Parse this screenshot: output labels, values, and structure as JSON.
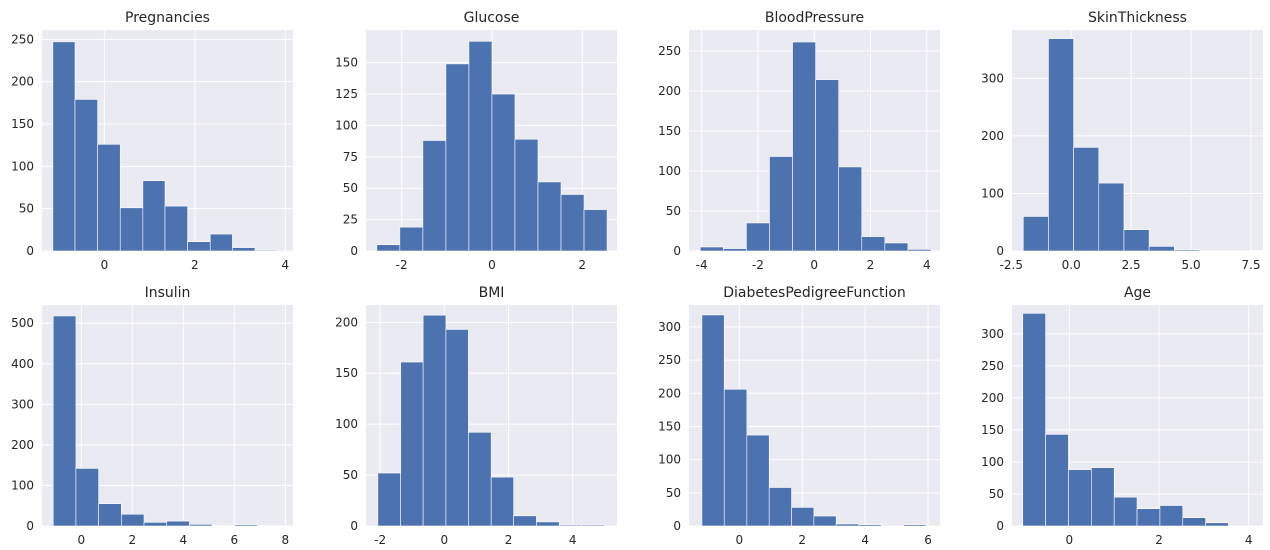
{
  "chart_data": [
    {
      "type": "bar",
      "title": "Pregnancies",
      "xlim": [
        -1.38,
        4.17
      ],
      "ylim": [
        0,
        261
      ],
      "xticks": [
        0,
        2,
        4
      ],
      "yticks": [
        0,
        50,
        100,
        150,
        200,
        250
      ],
      "bins": [
        [
          -1.14,
          -0.65,
          247
        ],
        [
          -0.65,
          -0.15,
          179
        ],
        [
          -0.15,
          0.35,
          126
        ],
        [
          0.35,
          0.85,
          51
        ],
        [
          0.85,
          1.34,
          83
        ],
        [
          1.34,
          1.84,
          53
        ],
        [
          1.84,
          2.34,
          11
        ],
        [
          2.34,
          2.83,
          20
        ],
        [
          2.83,
          3.33,
          4
        ],
        [
          3.33,
          3.83,
          1
        ]
      ]
    },
    {
      "type": "bar",
      "title": "Glucose",
      "xlim": [
        -2.79,
        2.77
      ],
      "ylim": [
        0,
        176
      ],
      "xticks": [
        -2,
        0,
        2
      ],
      "yticks": [
        0,
        25,
        50,
        75,
        100,
        125,
        150
      ],
      "bins": [
        [
          -2.55,
          -2.04,
          5
        ],
        [
          -2.04,
          -1.53,
          19
        ],
        [
          -1.53,
          -1.02,
          88
        ],
        [
          -1.02,
          -0.51,
          149
        ],
        [
          -0.51,
          0.0,
          167
        ],
        [
          0.0,
          0.51,
          125
        ],
        [
          0.51,
          1.02,
          89
        ],
        [
          1.02,
          1.53,
          55
        ],
        [
          1.53,
          2.04,
          45
        ],
        [
          2.04,
          2.55,
          33
        ]
      ]
    },
    {
      "type": "bar",
      "title": "BloodPressure",
      "xlim": [
        -4.45,
        4.47
      ],
      "ylim": [
        0,
        276
      ],
      "xticks": [
        -4,
        -2,
        0,
        2,
        4
      ],
      "yticks": [
        0,
        50,
        100,
        150,
        200,
        250
      ],
      "bins": [
        [
          -4.05,
          -3.23,
          5
        ],
        [
          -3.23,
          -2.41,
          3
        ],
        [
          -2.41,
          -1.59,
          35
        ],
        [
          -1.59,
          -0.77,
          118
        ],
        [
          -0.77,
          0.05,
          261
        ],
        [
          0.05,
          0.87,
          214
        ],
        [
          0.87,
          1.69,
          105
        ],
        [
          1.69,
          2.51,
          18
        ],
        [
          2.51,
          3.33,
          10
        ],
        [
          3.33,
          4.15,
          2
        ]
      ]
    },
    {
      "type": "bar",
      "title": "SkinThickness",
      "xlim": [
        -2.47,
        8.0
      ],
      "ylim": [
        0,
        384
      ],
      "xticks": [
        -2.5,
        0.0,
        2.5,
        5.0,
        7.5
      ],
      "yticks": [
        0,
        100,
        200,
        300
      ],
      "bins": [
        [
          -2.0,
          -0.95,
          60
        ],
        [
          -0.95,
          0.1,
          369
        ],
        [
          0.1,
          1.15,
          180
        ],
        [
          1.15,
          2.2,
          118
        ],
        [
          2.2,
          3.25,
          37
        ],
        [
          3.25,
          4.3,
          8
        ],
        [
          4.3,
          5.35,
          2
        ],
        [
          5.35,
          6.4,
          0
        ],
        [
          6.4,
          7.45,
          0
        ],
        [
          7.45,
          8.5,
          1
        ]
      ]
    },
    {
      "type": "bar",
      "title": "Insulin",
      "xlim": [
        -1.54,
        8.3
      ],
      "ylim": [
        0,
        545
      ],
      "xticks": [
        0,
        2,
        4,
        6,
        8
      ],
      "yticks": [
        0,
        100,
        200,
        300,
        400,
        500
      ],
      "bins": [
        [
          -1.1,
          -0.21,
          518
        ],
        [
          -0.21,
          0.68,
          142
        ],
        [
          0.68,
          1.57,
          55
        ],
        [
          1.57,
          2.46,
          29
        ],
        [
          2.46,
          3.35,
          9
        ],
        [
          3.35,
          4.24,
          12
        ],
        [
          4.24,
          5.13,
          4
        ],
        [
          5.13,
          6.02,
          1
        ],
        [
          6.02,
          6.91,
          3
        ],
        [
          6.91,
          7.8,
          1
        ]
      ]
    },
    {
      "type": "bar",
      "title": "BMI",
      "xlim": [
        -2.44,
        5.38
      ],
      "ylim": [
        0,
        217
      ],
      "xticks": [
        -2,
        0,
        2,
        4
      ],
      "yticks": [
        0,
        50,
        100,
        150,
        200
      ],
      "bins": [
        [
          -2.07,
          -1.36,
          52
        ],
        [
          -1.36,
          -0.66,
          161
        ],
        [
          -0.66,
          0.05,
          207
        ],
        [
          0.05,
          0.75,
          193
        ],
        [
          0.75,
          1.46,
          92
        ],
        [
          1.46,
          2.16,
          48
        ],
        [
          2.16,
          2.87,
          10
        ],
        [
          2.87,
          3.58,
          4
        ],
        [
          3.58,
          4.28,
          1
        ],
        [
          4.28,
          4.99,
          1
        ]
      ]
    },
    {
      "type": "bar",
      "title": "DiabetesPedigreeFunction",
      "xlim": [
        -1.6,
        6.38
      ],
      "ylim": [
        0,
        333
      ],
      "xticks": [
        0,
        2,
        4,
        6
      ],
      "yticks": [
        0,
        50,
        100,
        150,
        200,
        250,
        300
      ],
      "bins": [
        [
          -1.19,
          -0.48,
          318
        ],
        [
          -0.48,
          0.24,
          206
        ],
        [
          0.24,
          0.95,
          137
        ],
        [
          0.95,
          1.66,
          58
        ],
        [
          1.66,
          2.37,
          28
        ],
        [
          2.37,
          3.08,
          15
        ],
        [
          3.08,
          3.8,
          3
        ],
        [
          3.8,
          4.51,
          2
        ],
        [
          4.51,
          5.22,
          0
        ],
        [
          5.22,
          5.93,
          2
        ]
      ]
    },
    {
      "type": "bar",
      "title": "Age",
      "xlim": [
        -1.28,
        4.32
      ],
      "ylim": [
        0,
        345
      ],
      "xticks": [
        0,
        2,
        4
      ],
      "yticks": [
        0,
        50,
        100,
        150,
        200,
        250,
        300
      ],
      "bins": [
        [
          -1.04,
          -0.53,
          332
        ],
        [
          -0.53,
          -0.02,
          143
        ],
        [
          -0.02,
          0.49,
          88
        ],
        [
          0.49,
          1.0,
          91
        ],
        [
          1.0,
          1.51,
          45
        ],
        [
          1.51,
          2.02,
          27
        ],
        [
          2.02,
          2.53,
          32
        ],
        [
          2.53,
          3.04,
          13
        ],
        [
          3.04,
          3.55,
          5
        ],
        [
          3.55,
          4.06,
          0
        ]
      ]
    }
  ]
}
